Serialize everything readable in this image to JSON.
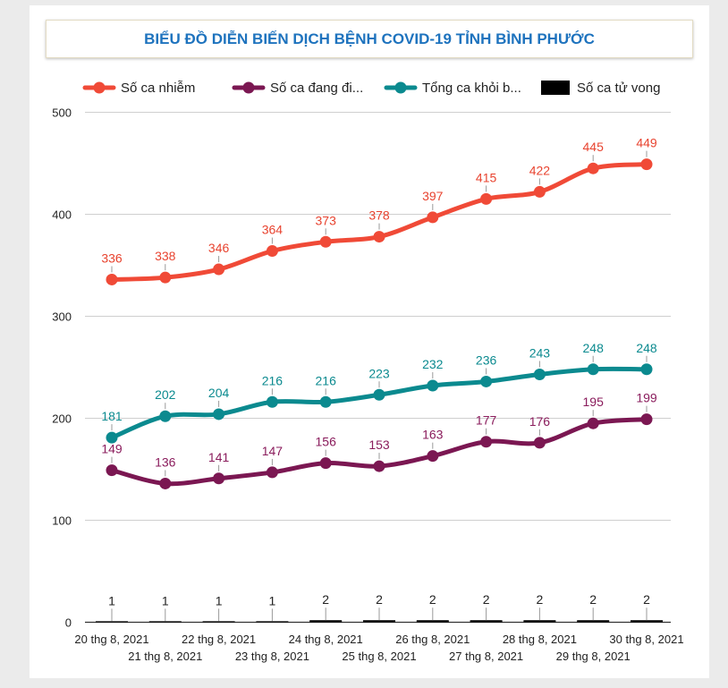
{
  "chart_data": {
    "type": "line",
    "title": "BIỂU ĐỒ DIỄN BIẾN DỊCH BỆNH COVID-19 TỈNH BÌNH PHƯỚC",
    "categories": [
      "20 thg 8, 2021",
      "21 thg 8, 2021",
      "22 thg 8, 2021",
      "23 thg 8, 2021",
      "24 thg 8, 2021",
      "25 thg 8, 2021",
      "26 thg 8, 2021",
      "27 thg 8, 2021",
      "28 thg 8, 2021",
      "29 thg 8, 2021",
      "30 thg 8, 2021"
    ],
    "ylim": [
      0,
      500
    ],
    "yticks": [
      0,
      100,
      200,
      300,
      400,
      500
    ],
    "grid": true,
    "legend_position": "top",
    "series": [
      {
        "name": "Số ca nhiễm",
        "legend_label": "Số ca nhiễm",
        "color": "#f04a37",
        "label_color": "#e8432f",
        "style": "line",
        "values": [
          336,
          338,
          346,
          364,
          373,
          378,
          397,
          415,
          422,
          445,
          449
        ]
      },
      {
        "name": "Số ca đang điều trị",
        "legend_label": "Số ca đang đi...",
        "color": "#7b1752",
        "label_color": "#8a1c5c",
        "style": "line",
        "values": [
          149,
          136,
          141,
          147,
          156,
          153,
          163,
          177,
          176,
          195,
          199
        ]
      },
      {
        "name": "Tổng ca khỏi bệnh",
        "legend_label": "Tổng ca khỏi b...",
        "color": "#0b8a8f",
        "label_color": "#0b8a8f",
        "style": "line",
        "values": [
          181,
          202,
          204,
          216,
          216,
          223,
          232,
          236,
          243,
          248,
          248
        ]
      },
      {
        "name": "Số ca tử vong",
        "legend_label": "Số ca tử vong",
        "color": "#000000",
        "label_color": "#222222",
        "style": "bar",
        "values": [
          1,
          1,
          1,
          1,
          2,
          2,
          2,
          2,
          2,
          2,
          2
        ]
      }
    ]
  }
}
